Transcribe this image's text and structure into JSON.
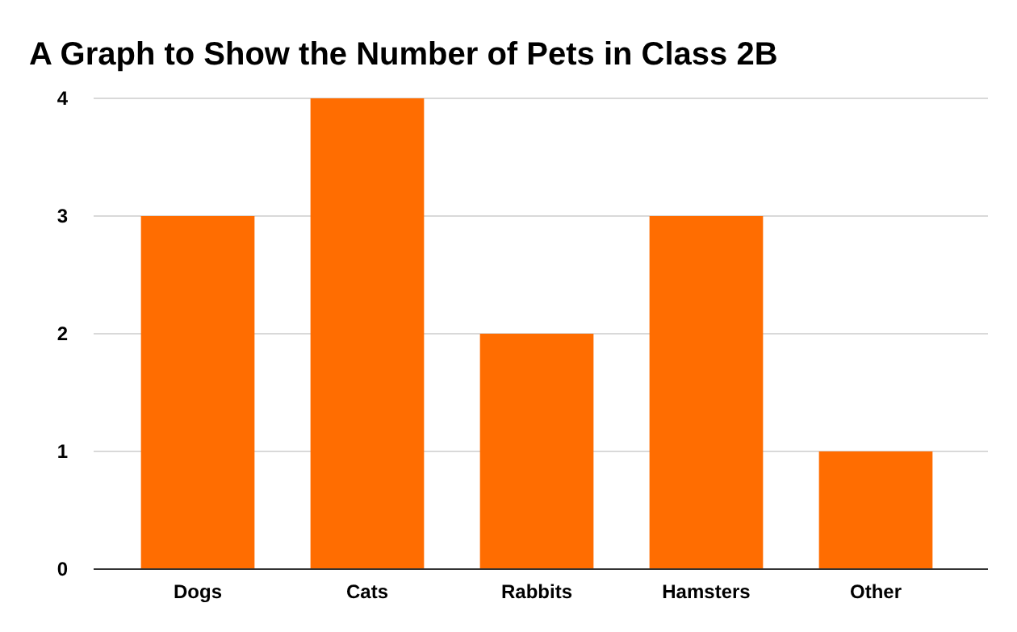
{
  "chart_data": {
    "type": "bar",
    "title": "A Graph to Show the Number of Pets in Class 2B",
    "categories": [
      "Dogs",
      "Cats",
      "Rabbits",
      "Hamsters",
      "Other"
    ],
    "values": [
      3,
      4,
      2,
      3,
      1
    ],
    "color": "#ff6d01",
    "ylim": [
      0,
      4
    ],
    "yticks": [
      0,
      1,
      2,
      3,
      4
    ],
    "grid": "y"
  }
}
